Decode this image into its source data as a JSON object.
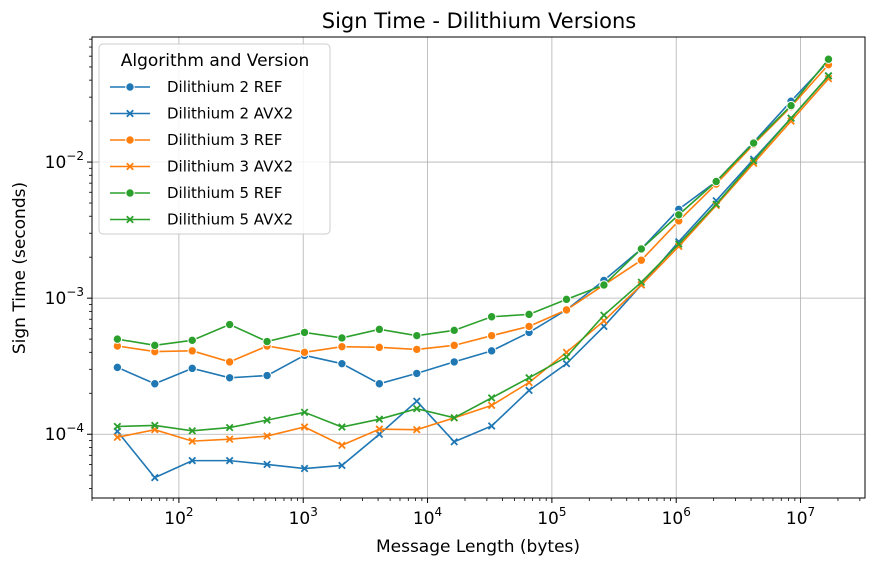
{
  "chart_data": {
    "type": "line",
    "title": "Sign Time - Dilithium Versions",
    "xlabel": "Message Length (bytes)",
    "ylabel": "Sign Time (seconds)",
    "xscale": "log",
    "yscale": "log",
    "xlim": [
      20,
      33000000
    ],
    "ylim": [
      3.4e-05,
      0.083
    ],
    "grid": true,
    "legend": {
      "title": "Algorithm and Version",
      "placement": "top-left"
    },
    "x_ticks": [
      {
        "value": 100,
        "base": "10",
        "exp": "2"
      },
      {
        "value": 1000,
        "base": "10",
        "exp": "3"
      },
      {
        "value": 10000,
        "base": "10",
        "exp": "4"
      },
      {
        "value": 100000,
        "base": "10",
        "exp": "5"
      },
      {
        "value": 1000000,
        "base": "10",
        "exp": "6"
      },
      {
        "value": 10000000,
        "base": "10",
        "exp": "7"
      }
    ],
    "y_ticks": [
      {
        "value": 0.0001,
        "base": "10",
        "exp": "−4"
      },
      {
        "value": 0.001,
        "base": "10",
        "exp": "−3"
      },
      {
        "value": 0.01,
        "base": "10",
        "exp": "−2"
      }
    ],
    "x": [
      32,
      64,
      128,
      256,
      512,
      1024,
      2048,
      4096,
      8192,
      16384,
      32768,
      65536,
      131072,
      262144,
      524288,
      1048576,
      2097152,
      4194304,
      8388608,
      16777216
    ],
    "series": [
      {
        "name": "Dilithium 2 REF",
        "color": "#1f77b4",
        "marker": "circle",
        "values": [
          0.00031,
          0.000235,
          0.000305,
          0.00026,
          0.00027,
          0.00038,
          0.00033,
          0.000235,
          0.00028,
          0.00034,
          0.00041,
          0.00056,
          0.00082,
          0.00135,
          0.0023,
          0.0045,
          0.0072,
          0.014,
          0.028,
          0.055
        ]
      },
      {
        "name": "Dilithium 2 AVX2",
        "color": "#1f77b4",
        "marker": "x",
        "values": [
          0.000105,
          4.8e-05,
          6.4e-05,
          6.4e-05,
          6e-05,
          5.6e-05,
          5.9e-05,
          0.0001,
          0.000175,
          8.8e-05,
          0.000115,
          0.00021,
          0.00033,
          0.00062,
          0.00125,
          0.0026,
          0.0052,
          0.0105,
          0.021,
          0.043
        ]
      },
      {
        "name": "Dilithium 3 REF",
        "color": "#ff7f0e",
        "marker": "circle",
        "values": [
          0.000445,
          0.000405,
          0.00041,
          0.00034,
          0.000445,
          0.0004,
          0.00044,
          0.000435,
          0.00042,
          0.00045,
          0.00053,
          0.00062,
          0.00082,
          0.00125,
          0.0019,
          0.0037,
          0.0069,
          0.0135,
          0.0255,
          0.052
        ]
      },
      {
        "name": "Dilithium 3 AVX2",
        "color": "#ff7f0e",
        "marker": "x",
        "values": [
          9.5e-05,
          0.000108,
          8.9e-05,
          9.2e-05,
          9.7e-05,
          0.000113,
          8.3e-05,
          0.000109,
          0.000108,
          0.000132,
          0.000163,
          0.00024,
          0.0004,
          0.00068,
          0.00125,
          0.0024,
          0.0048,
          0.0098,
          0.02,
          0.041
        ]
      },
      {
        "name": "Dilithium 5 REF",
        "color": "#2ca02c",
        "marker": "circle",
        "values": [
          0.0005,
          0.00045,
          0.00049,
          0.00064,
          0.00048,
          0.00056,
          0.00051,
          0.00059,
          0.00053,
          0.00058,
          0.00073,
          0.00076,
          0.00098,
          0.00125,
          0.0023,
          0.0041,
          0.0072,
          0.0138,
          0.026,
          0.057
        ]
      },
      {
        "name": "Dilithium 5 AVX2",
        "color": "#2ca02c",
        "marker": "x",
        "values": [
          0.000114,
          0.000116,
          0.000106,
          0.000112,
          0.000127,
          0.000145,
          0.000113,
          0.000129,
          0.000154,
          0.000132,
          0.000185,
          0.00026,
          0.00037,
          0.00075,
          0.00131,
          0.0025,
          0.0049,
          0.0102,
          0.021,
          0.043
        ]
      }
    ]
  }
}
